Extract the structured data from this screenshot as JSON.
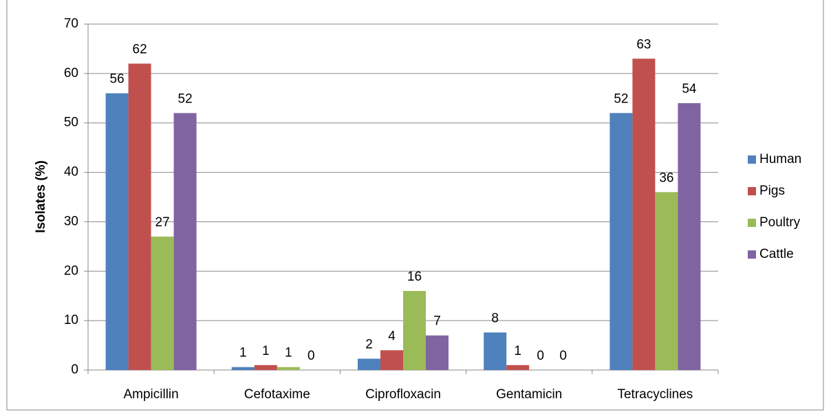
{
  "chart_data": {
    "type": "bar",
    "y_label": "Isolates (%)",
    "categories": [
      "Ampicillin",
      "Cefotaxime",
      "Ciprofloxacin",
      "Gentamicin",
      "Tetracyclines"
    ],
    "series": [
      {
        "name": "Human",
        "color": "#4f81bd",
        "values": [
          56,
          0.6,
          2.3,
          7.6,
          52
        ],
        "value_labels": [
          "56",
          "1",
          "2",
          "8",
          "52"
        ]
      },
      {
        "name": "Pigs",
        "color": "#c0504d",
        "values": [
          62,
          1,
          4,
          1,
          63
        ],
        "value_labels": [
          "62",
          "1",
          "4",
          "1",
          "63"
        ]
      },
      {
        "name": "Poultry",
        "color": "#9bbb59",
        "values": [
          27,
          0.6,
          16,
          0,
          36
        ],
        "value_labels": [
          "27",
          "1",
          "16",
          "0",
          "36"
        ]
      },
      {
        "name": "Cattle",
        "color": "#8064a2",
        "values": [
          52,
          0,
          7,
          0,
          54
        ],
        "value_labels": [
          "52",
          "0",
          "7",
          "0",
          "54"
        ]
      }
    ],
    "ylim": [
      0,
      70
    ],
    "yticks": [
      0,
      10,
      20,
      30,
      40,
      50,
      60,
      70
    ],
    "grid": true,
    "legend": "right"
  }
}
